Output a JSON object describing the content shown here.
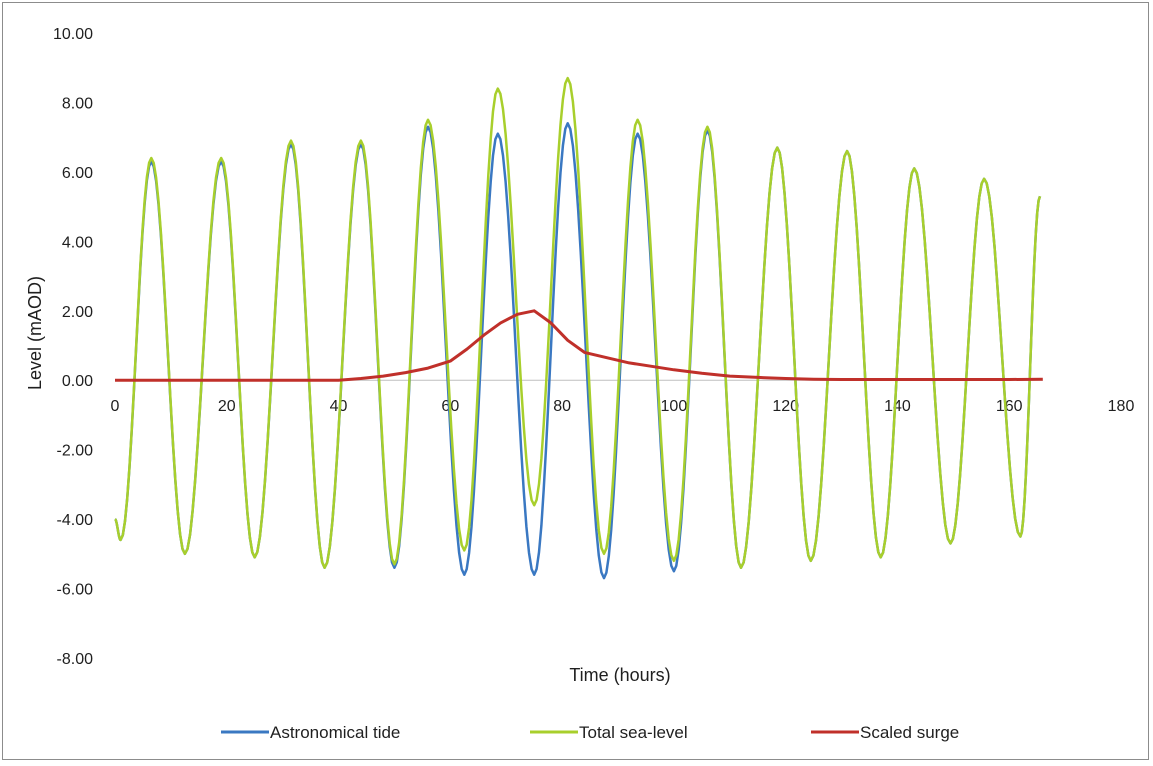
{
  "chart_data": {
    "type": "line",
    "title": "",
    "xlabel": "Time (hours)",
    "ylabel": "Level (mAOD)",
    "xlim": [
      0,
      180
    ],
    "ylim": [
      -8,
      10
    ],
    "x_ticks": [
      "0",
      "20",
      "40",
      "60",
      "80",
      "100",
      "120",
      "140",
      "160",
      "180"
    ],
    "y_ticks": [
      "10.00",
      "8.00",
      "6.00",
      "4.00",
      "2.00",
      "0.00",
      "-2.00",
      "-4.00",
      "-6.00",
      "-8.00"
    ],
    "grid": false,
    "legend_position": "bottom",
    "series": [
      {
        "name": "Astronomical tide",
        "color": "#3a78c2",
        "x": [
          0,
          1,
          6.5,
          12.5,
          19,
          25,
          31.5,
          37.5,
          44,
          50,
          56,
          62.5,
          68.5,
          75,
          81,
          87.5,
          93.5,
          100,
          106,
          112,
          118.5,
          124.5,
          131,
          137,
          143,
          149.5,
          155.5,
          162,
          165.5
        ],
        "y": [
          -4.0,
          -4.6,
          6.3,
          -5.0,
          6.3,
          -5.1,
          6.8,
          -5.4,
          6.8,
          -5.4,
          7.3,
          -5.6,
          7.1,
          -5.6,
          7.4,
          -5.7,
          7.1,
          -5.5,
          7.2,
          -5.4,
          6.7,
          -5.2,
          6.6,
          -5.1,
          6.1,
          -4.7,
          5.8,
          -4.5,
          5.3
        ]
      },
      {
        "name": "Total sea-level",
        "color": "#a8cf2c",
        "x": [
          0,
          1,
          6.5,
          12.5,
          19,
          25,
          31.5,
          37.5,
          44,
          50,
          56,
          62.5,
          68.5,
          75,
          81,
          87.5,
          93.5,
          100,
          106,
          112,
          118.5,
          124.5,
          131,
          137,
          143,
          149.5,
          155.5,
          162,
          165.5
        ],
        "y": [
          -4.0,
          -4.6,
          6.4,
          -5.0,
          6.4,
          -5.1,
          6.9,
          -5.4,
          6.9,
          -5.3,
          7.5,
          -4.9,
          8.4,
          -3.6,
          8.7,
          -5.0,
          7.5,
          -5.2,
          7.3,
          -5.4,
          6.7,
          -5.2,
          6.6,
          -5.1,
          6.1,
          -4.7,
          5.8,
          -4.5,
          5.3
        ]
      },
      {
        "name": "Scaled surge",
        "color": "#c0302a",
        "x": [
          0,
          20,
          40,
          44,
          48,
          52,
          56,
          60,
          63,
          66,
          69,
          72,
          75,
          78,
          81,
          84,
          88,
          92,
          96,
          100,
          105,
          110,
          115,
          120,
          125,
          130,
          140,
          150,
          160,
          166
        ],
        "y": [
          0,
          0,
          0,
          0.05,
          0.12,
          0.22,
          0.35,
          0.55,
          0.9,
          1.3,
          1.65,
          1.9,
          2.0,
          1.65,
          1.15,
          0.8,
          0.65,
          0.5,
          0.4,
          0.3,
          0.2,
          0.12,
          0.08,
          0.05,
          0.03,
          0.02,
          0.02,
          0.02,
          0.02,
          0.03
        ]
      }
    ]
  }
}
